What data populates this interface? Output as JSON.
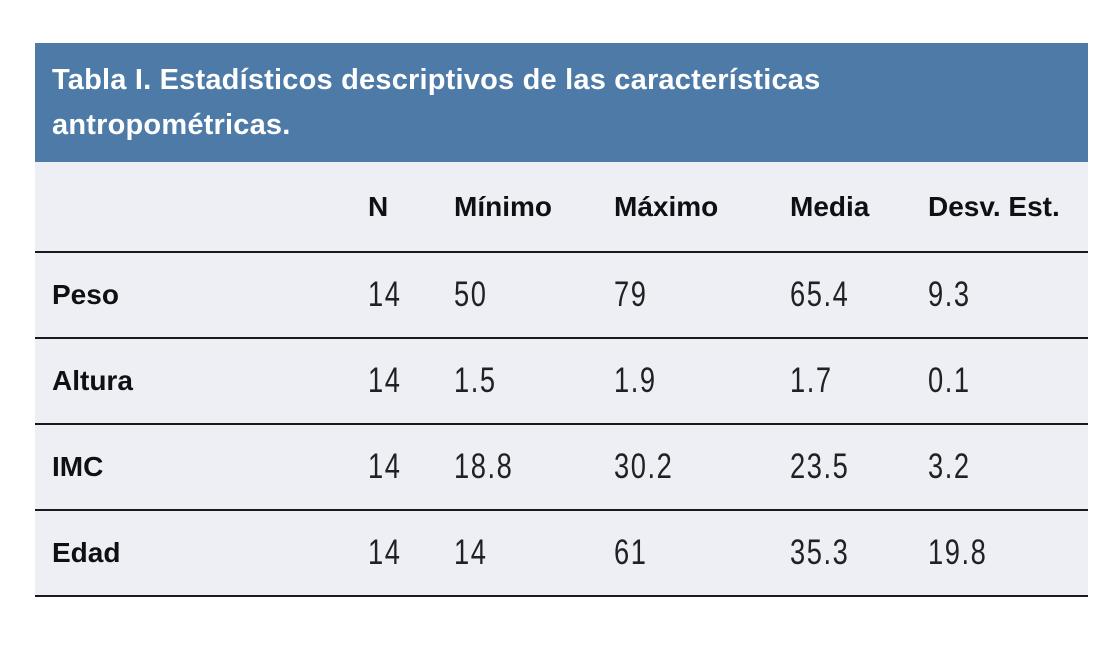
{
  "chart_data": {
    "type": "table",
    "title": "Tabla I. Estadísticos descriptivos de las características\nantropométricas.",
    "columns": [
      "",
      "N",
      "Mínimo",
      "Máximo",
      "Media",
      "Desv. Est."
    ],
    "rows": [
      {
        "label": "Peso",
        "values": [
          "14",
          "50",
          "79",
          "65.4",
          "9.3"
        ]
      },
      {
        "label": "Altura",
        "values": [
          "14",
          "1.5",
          "1.9",
          "1.7",
          "0.1"
        ]
      },
      {
        "label": "IMC",
        "values": [
          "14",
          "18.8",
          "30.2",
          "23.5",
          "3.2"
        ]
      },
      {
        "label": "Edad",
        "values": [
          "14",
          "14",
          "61",
          "35.3",
          "19.8"
        ]
      }
    ],
    "layout": {
      "legend": "none",
      "grid": "horizontal-rules-only",
      "title_position": "top-bar"
    },
    "colors": {
      "title_bar_bg": "#4d7aa7",
      "title_text": "#ffffff",
      "row_bg": "#edeff4",
      "rule": "#1a1a1c",
      "text": "#101014",
      "page_bg": "#ffffff"
    }
  }
}
